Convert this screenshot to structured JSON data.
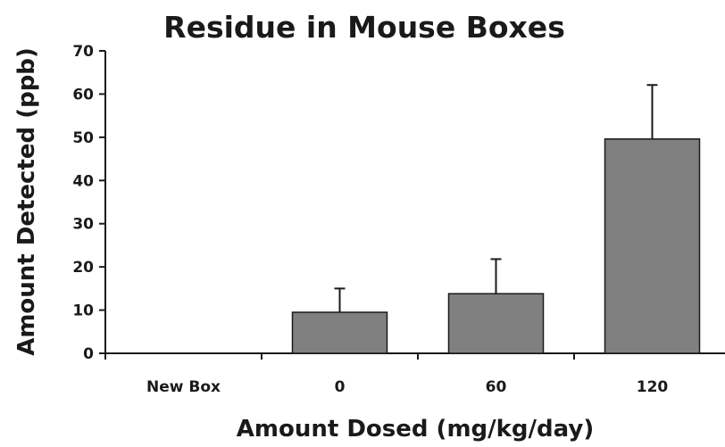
{
  "chart_data": {
    "type": "bar",
    "title": "Residue in Mouse Boxes",
    "xlabel": "Amount Dosed (mg/kg/day)",
    "ylabel": "Amount Detected (ppb)",
    "categories": [
      "New Box",
      "0",
      "60",
      "120"
    ],
    "values": [
      0,
      9.5,
      13.8,
      49.6
    ],
    "error_upper": [
      0,
      5.5,
      8,
      12.5
    ],
    "ylim": [
      0,
      70
    ],
    "yticks": [
      0,
      10,
      20,
      30,
      40,
      50,
      60,
      70
    ],
    "grid": false,
    "legend": "none",
    "bar_color": "#808080",
    "bar_edge_color": "#1a1a1a",
    "error_bar_color": "#1a1a1a"
  }
}
